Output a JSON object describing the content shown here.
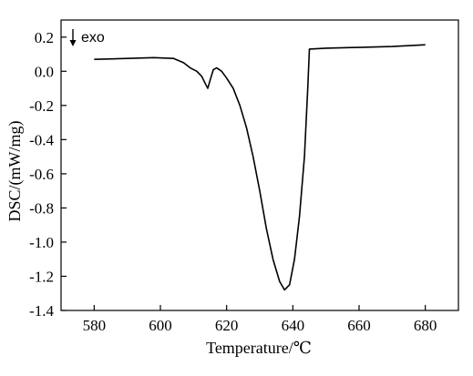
{
  "chart_data": {
    "type": "line",
    "xlabel": "Temperature/℃",
    "ylabel": "DSC/(mW/mg)",
    "xlim": [
      570,
      690
    ],
    "ylim": [
      -1.4,
      0.3
    ],
    "x_ticks": [
      580,
      600,
      620,
      640,
      660,
      680
    ],
    "y_ticks": [
      0.2,
      0.0,
      -0.2,
      -0.4,
      -0.6,
      -0.8,
      -1.0,
      -1.2,
      -1.4
    ],
    "x_tick_labels": [
      "580",
      "600",
      "620",
      "640",
      "660",
      "680"
    ],
    "y_tick_labels": [
      "0.2",
      "0.0",
      "-0.2",
      "-0.4",
      "-0.6",
      "-0.8",
      "-1.0",
      "-1.2",
      "-1.4"
    ],
    "annotation": "exo",
    "grid": false,
    "series": [
      {
        "color": "#000000",
        "points": [
          [
            580,
            0.07
          ],
          [
            590,
            0.075
          ],
          [
            598,
            0.08
          ],
          [
            604,
            0.075
          ],
          [
            607,
            0.05
          ],
          [
            609,
            0.02
          ],
          [
            611,
            0.0
          ],
          [
            612.5,
            -0.03
          ],
          [
            613.5,
            -0.07
          ],
          [
            614.3,
            -0.1
          ],
          [
            615.2,
            -0.04
          ],
          [
            616,
            0.01
          ],
          [
            617,
            0.02
          ],
          [
            618.5,
            0.0
          ],
          [
            620,
            -0.04
          ],
          [
            622,
            -0.1
          ],
          [
            624,
            -0.2
          ],
          [
            626,
            -0.33
          ],
          [
            628,
            -0.5
          ],
          [
            630,
            -0.7
          ],
          [
            632,
            -0.92
          ],
          [
            634,
            -1.1
          ],
          [
            636,
            -1.23
          ],
          [
            637.5,
            -1.28
          ],
          [
            639,
            -1.25
          ],
          [
            640.5,
            -1.1
          ],
          [
            642,
            -0.85
          ],
          [
            643.5,
            -0.5
          ],
          [
            644.5,
            -0.1
          ],
          [
            645,
            0.13
          ],
          [
            650,
            0.135
          ],
          [
            660,
            0.14
          ],
          [
            670,
            0.145
          ],
          [
            680,
            0.155
          ]
        ]
      }
    ]
  }
}
